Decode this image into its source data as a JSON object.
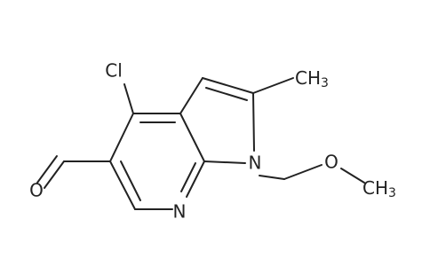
{
  "nodes": [
    {
      "label": "Cl"
    },
    {
      "label": "CH",
      "subscript": "3"
    },
    {
      "label": "N"
    },
    {
      "label": "N"
    },
    {
      "label": "O"
    },
    {
      "label": "O"
    },
    {
      "label": "CH",
      "subscript": "3"
    }
  ]
}
